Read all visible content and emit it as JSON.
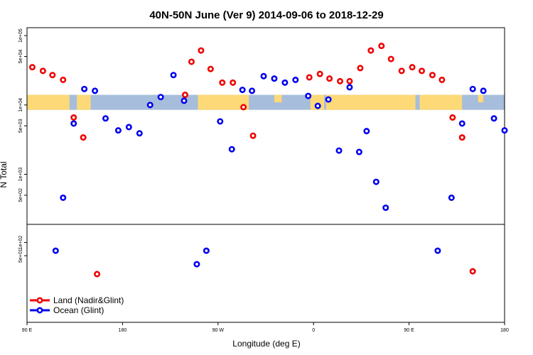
{
  "chart_data": {
    "type": "scatter",
    "title": "40N-50N June (Ver 9)   2014-09-06 to 2018-12-29",
    "xlabel": "Longitude (deg E)",
    "ylabel": "N Total",
    "x_tick_labels": [
      "90 E",
      "180",
      "90 W",
      "0",
      "90 E",
      "180"
    ],
    "x_tick_positions": [
      90,
      180,
      270,
      360,
      450,
      540
    ],
    "xlim": [
      90,
      540
    ],
    "y_scale": "log",
    "upper_panel": {
      "ylim": [
        190,
        130000
      ],
      "y_tick_labels": [
        "5e+02",
        "1e+03",
        "5e+03",
        "1e+04",
        "5e+04",
        "1e+05"
      ],
      "y_tick_values": [
        500,
        1000,
        5000,
        10000,
        50000,
        100000
      ]
    },
    "lower_panel": {
      "ylim": [
        1.5,
        260
      ],
      "y_tick_labels": [
        "5e+01",
        "1e+02"
      ],
      "y_tick_values": [
        50,
        100
      ]
    },
    "map_band": {
      "y_range": [
        8500,
        14000
      ],
      "ocean_color": "#a6bddb",
      "land_color": "#fdd978"
    },
    "series": [
      {
        "name": "Land (Nadir&Glint)",
        "color": "#ee0000",
        "points": [
          [
            95,
            35000
          ],
          [
            105,
            31000
          ],
          [
            114,
            27000
          ],
          [
            124,
            23000
          ],
          [
            134,
            6600
          ],
          [
            143,
            3400
          ],
          [
            239,
            14000
          ],
          [
            245,
            42000
          ],
          [
            254,
            61000
          ],
          [
            263,
            33000
          ],
          [
            274,
            21000
          ],
          [
            284,
            21000
          ],
          [
            294,
            9300
          ],
          [
            303,
            3600
          ],
          [
            356,
            25000
          ],
          [
            366,
            28000
          ],
          [
            375,
            24000
          ],
          [
            385,
            22000
          ],
          [
            394,
            22000
          ],
          [
            404,
            34000
          ],
          [
            414,
            61000
          ],
          [
            424,
            71000
          ],
          [
            433,
            46000
          ],
          [
            443,
            31000
          ],
          [
            453,
            35000
          ],
          [
            462,
            31000
          ],
          [
            472,
            27000
          ],
          [
            481,
            23000
          ],
          [
            491,
            6600
          ],
          [
            500,
            3400
          ],
          [
            156,
            19
          ],
          [
            510,
            22
          ]
        ]
      },
      {
        "name": "Ocean (Glint)",
        "color": "#0000ee",
        "points": [
          [
            124,
            460
          ],
          [
            134,
            5400
          ],
          [
            144,
            17000
          ],
          [
            154,
            16000
          ],
          [
            164,
            6400
          ],
          [
            176,
            4300
          ],
          [
            186,
            4800
          ],
          [
            196,
            3900
          ],
          [
            206,
            10000
          ],
          [
            216,
            13000
          ],
          [
            228,
            27000
          ],
          [
            238,
            11500
          ],
          [
            272,
            5800
          ],
          [
            283,
            2300
          ],
          [
            293,
            16500
          ],
          [
            302,
            16000
          ],
          [
            313,
            26000
          ],
          [
            323,
            24000
          ],
          [
            333,
            21000
          ],
          [
            343,
            23000
          ],
          [
            355,
            13500
          ],
          [
            364,
            9700
          ],
          [
            374,
            12000
          ],
          [
            384,
            2200
          ],
          [
            394,
            18000
          ],
          [
            403,
            2100
          ],
          [
            410,
            4200
          ],
          [
            419,
            780
          ],
          [
            428,
            330
          ],
          [
            490,
            460
          ],
          [
            500,
            5400
          ],
          [
            510,
            17000
          ],
          [
            520,
            16000
          ],
          [
            530,
            6400
          ],
          [
            540,
            4300
          ],
          [
            117,
            65
          ],
          [
            259,
            65
          ],
          [
            250,
            32
          ],
          [
            477,
            65
          ]
        ]
      }
    ],
    "legend": {
      "position": "bottom-left"
    }
  }
}
